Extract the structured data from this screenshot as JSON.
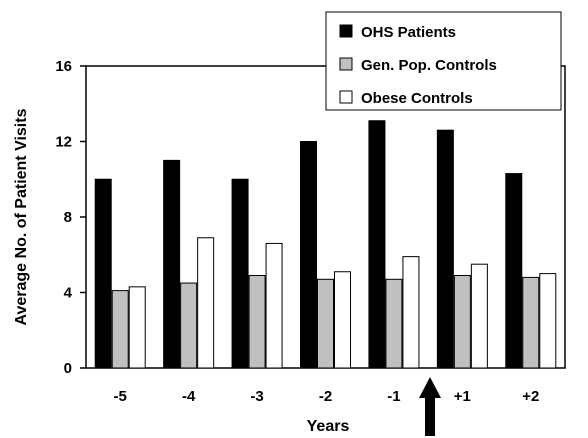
{
  "chart_data": {
    "type": "bar",
    "xlabel": "Years",
    "ylabel": "Average No. of Patient Visits",
    "ylim": [
      0,
      16
    ],
    "yticks": [
      0,
      4,
      8,
      12,
      16
    ],
    "categories": [
      "-5",
      "-4",
      "-3",
      "-2",
      "-1",
      "+1",
      "+2"
    ],
    "series": [
      {
        "name": "OHS Patients",
        "color": "#000000",
        "values": [
          10.0,
          11.0,
          10.0,
          12.0,
          13.1,
          12.6,
          10.3
        ]
      },
      {
        "name": "Gen. Pop. Controls",
        "color": "#c0c0c0",
        "values": [
          4.1,
          4.5,
          4.9,
          4.7,
          4.7,
          4.9,
          4.8
        ]
      },
      {
        "name": "Obese Controls",
        "color": "#ffffff",
        "values": [
          4.3,
          6.9,
          6.6,
          5.1,
          5.9,
          5.5,
          5.0
        ]
      }
    ],
    "legend_position": "top-right",
    "grid": false,
    "annotation": "upward arrow between -1 and +1"
  }
}
